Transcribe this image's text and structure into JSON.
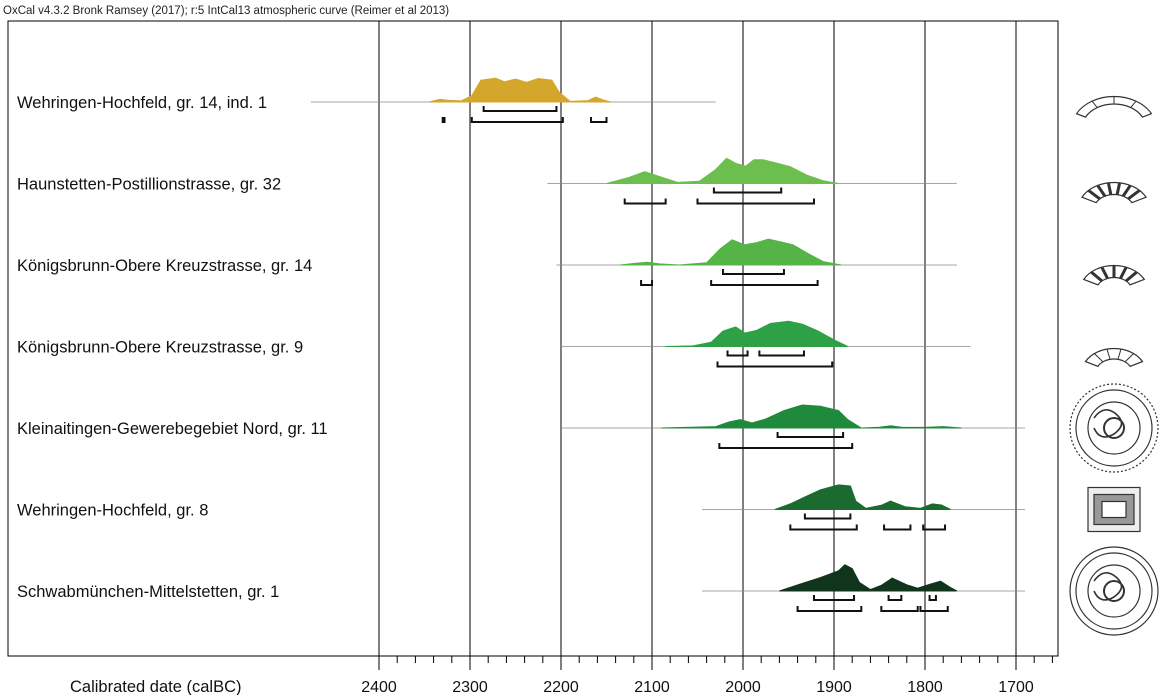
{
  "header": "OxCal v4.3.2 Bronk Ramsey (2017); r:5 IntCal13 atmospheric curve (Reimer et al 2013)",
  "chart_data": {
    "type": "area",
    "xlabel": "Calibrated date (calBC)",
    "x_ticks": [
      2400,
      2300,
      2200,
      2100,
      2000,
      1900,
      1800,
      1700
    ],
    "xlim": [
      2400,
      1650
    ],
    "grid": true,
    "samples": [
      {
        "name": "Wehringen-Hochfeld, gr. 14, ind. 1",
        "color": "#d4a72c",
        "line_range": [
          2475,
          2030
        ],
        "pdf": [
          [
            2345,
            0
          ],
          [
            2333,
            0.1
          ],
          [
            2325,
            0.06
          ],
          [
            2310,
            0.04
          ],
          [
            2298,
            0.22
          ],
          [
            2288,
            0.78
          ],
          [
            2272,
            0.85
          ],
          [
            2262,
            0.72
          ],
          [
            2250,
            0.82
          ],
          [
            2238,
            0.7
          ],
          [
            2225,
            0.84
          ],
          [
            2210,
            0.78
          ],
          [
            2202,
            0.35
          ],
          [
            2190,
            0.02
          ],
          [
            2170,
            0.05
          ],
          [
            2162,
            0.18
          ],
          [
            2154,
            0.08
          ],
          [
            2145,
            0
          ]
        ],
        "range_68": [
          [
            2285,
            2205
          ]
        ],
        "range_95": [
          [
            2330,
            2328
          ],
          [
            2298,
            2198
          ],
          [
            2167,
            2150
          ]
        ]
      },
      {
        "name": "Haunstetten-Postillionstrasse, gr. 32",
        "color": "#6cbf4e",
        "line_range": [
          2215,
          1765
        ],
        "pdf": [
          [
            2150,
            0
          ],
          [
            2125,
            0.22
          ],
          [
            2108,
            0.42
          ],
          [
            2092,
            0.25
          ],
          [
            2072,
            0.04
          ],
          [
            2048,
            0.08
          ],
          [
            2030,
            0.5
          ],
          [
            2018,
            0.9
          ],
          [
            2008,
            0.72
          ],
          [
            1997,
            0.62
          ],
          [
            1988,
            0.85
          ],
          [
            1978,
            0.85
          ],
          [
            1962,
            0.72
          ],
          [
            1948,
            0.6
          ],
          [
            1930,
            0.3
          ],
          [
            1912,
            0.1
          ],
          [
            1895,
            0
          ]
        ],
        "range_68": [
          [
            2032,
            1958
          ]
        ],
        "range_95": [
          [
            2130,
            2085
          ],
          [
            2050,
            1922
          ]
        ]
      },
      {
        "name": "Königsbrunn-Obere Kreuzstrasse, gr. 14",
        "color": "#55b348",
        "line_range": [
          2205,
          1765
        ],
        "pdf": [
          [
            2135,
            0
          ],
          [
            2118,
            0.06
          ],
          [
            2105,
            0.1
          ],
          [
            2092,
            0.04
          ],
          [
            2070,
            0
          ],
          [
            2040,
            0.08
          ],
          [
            2025,
            0.58
          ],
          [
            2012,
            0.9
          ],
          [
            1998,
            0.72
          ],
          [
            1985,
            0.8
          ],
          [
            1972,
            0.92
          ],
          [
            1958,
            0.82
          ],
          [
            1945,
            0.72
          ],
          [
            1928,
            0.4
          ],
          [
            1912,
            0.12
          ],
          [
            1892,
            0
          ]
        ],
        "range_68": [
          [
            2022,
            1955
          ]
        ],
        "range_95": [
          [
            2112,
            2100
          ],
          [
            2035,
            1918
          ]
        ]
      },
      {
        "name": "Königsbrunn-Obere Kreuzstrasse, gr. 9",
        "color": "#2ea046",
        "line_range": [
          2200,
          1750
        ],
        "pdf": [
          [
            2085,
            0
          ],
          [
            2055,
            0.02
          ],
          [
            2035,
            0.15
          ],
          [
            2022,
            0.55
          ],
          [
            2008,
            0.7
          ],
          [
            1998,
            0.48
          ],
          [
            1985,
            0.58
          ],
          [
            1970,
            0.82
          ],
          [
            1950,
            0.9
          ],
          [
            1935,
            0.8
          ],
          [
            1918,
            0.56
          ],
          [
            1900,
            0.24
          ],
          [
            1885,
            0
          ]
        ],
        "range_68": [
          [
            2017,
            1995
          ],
          [
            1982,
            1933
          ]
        ],
        "range_95": [
          [
            2028,
            1902
          ]
        ]
      },
      {
        "name": "Kleinaitingen-Gewerebegebiet Nord, gr. 11",
        "color": "#1f8a3c",
        "line_range": [
          2200,
          1690
        ],
        "pdf": [
          [
            2090,
            0
          ],
          [
            2030,
            0.05
          ],
          [
            2015,
            0.22
          ],
          [
            2003,
            0.3
          ],
          [
            1990,
            0.18
          ],
          [
            1975,
            0.32
          ],
          [
            1955,
            0.62
          ],
          [
            1935,
            0.82
          ],
          [
            1915,
            0.78
          ],
          [
            1895,
            0.62
          ],
          [
            1885,
            0.3
          ],
          [
            1870,
            0
          ],
          [
            1850,
            0.03
          ],
          [
            1838,
            0.08
          ],
          [
            1825,
            0.02
          ],
          [
            1800,
            0.02
          ],
          [
            1780,
            0.05
          ],
          [
            1760,
            0
          ]
        ],
        "range_68": [
          [
            1962,
            1890
          ]
        ],
        "range_95": [
          [
            2026,
            1880
          ]
        ]
      },
      {
        "name": "Wehringen-Hochfeld, gr. 8",
        "color": "#1b6b30",
        "line_range": [
          2045,
          1690
        ],
        "pdf": [
          [
            1965,
            0
          ],
          [
            1948,
            0.2
          ],
          [
            1932,
            0.45
          ],
          [
            1915,
            0.7
          ],
          [
            1895,
            0.88
          ],
          [
            1882,
            0.84
          ],
          [
            1876,
            0.3
          ],
          [
            1865,
            0.04
          ],
          [
            1848,
            0.15
          ],
          [
            1838,
            0.3
          ],
          [
            1822,
            0.1
          ],
          [
            1805,
            0.04
          ],
          [
            1792,
            0.2
          ],
          [
            1782,
            0.16
          ],
          [
            1772,
            0
          ]
        ],
        "range_68": [
          [
            1932,
            1882
          ]
        ],
        "range_95": [
          [
            1948,
            1875
          ],
          [
            1845,
            1816
          ],
          [
            1802,
            1778
          ]
        ]
      },
      {
        "name": "Schwabmünchen-Mittelstetten, gr. 1",
        "color": "#10351c",
        "line_range": [
          2045,
          1690
        ],
        "pdf": [
          [
            1960,
            0
          ],
          [
            1938,
            0.24
          ],
          [
            1915,
            0.48
          ],
          [
            1895,
            0.72
          ],
          [
            1888,
            0.94
          ],
          [
            1880,
            0.8
          ],
          [
            1872,
            0.3
          ],
          [
            1860,
            0.05
          ],
          [
            1848,
            0.2
          ],
          [
            1836,
            0.46
          ],
          [
            1820,
            0.22
          ],
          [
            1808,
            0.1
          ],
          [
            1795,
            0.24
          ],
          [
            1783,
            0.35
          ],
          [
            1772,
            0.12
          ],
          [
            1765,
            0
          ]
        ],
        "range_68": [
          [
            1922,
            1878
          ],
          [
            1840,
            1826
          ],
          [
            1795,
            1788
          ]
        ],
        "range_95": [
          [
            1940,
            1870
          ],
          [
            1848,
            1808
          ],
          [
            1805,
            1775
          ]
        ]
      }
    ]
  },
  "artifact_icons": [
    "bracelet-fragment-icon",
    "zigzag-armlet-icon",
    "banded-armlet-icon",
    "decorated-fragment-icon",
    "disc-ornament-icon",
    "belt-plate-icon",
    "spiral-disc-icon"
  ]
}
